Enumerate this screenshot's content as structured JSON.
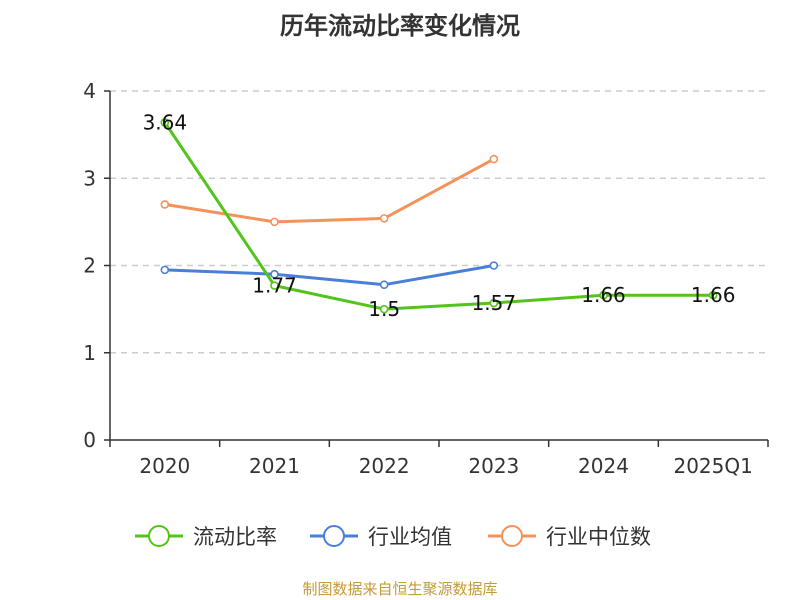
{
  "chart_data": {
    "type": "line",
    "title": "历年流动比率变化情况",
    "categories": [
      "2020",
      "2021",
      "2022",
      "2023",
      "2024",
      "2025Q1"
    ],
    "ylim": [
      0,
      4
    ],
    "yticks": [
      0,
      1,
      2,
      3,
      4
    ],
    "grid": true,
    "legend_position": "bottom",
    "series": [
      {
        "name": "流动比率",
        "color": "#52c41a",
        "values": [
          3.64,
          1.77,
          1.5,
          1.57,
          1.66,
          1.66
        ],
        "labels": [
          "3.64",
          "1.77",
          "1.5",
          "1.57",
          "1.66",
          "1.66"
        ]
      },
      {
        "name": "行业均值",
        "color": "#4a7fd8",
        "values": [
          1.95,
          1.9,
          1.78,
          2.0,
          null,
          null
        ]
      },
      {
        "name": "行业中位数",
        "color": "#f5915a",
        "values": [
          2.7,
          2.5,
          2.54,
          3.22,
          null,
          null
        ]
      }
    ]
  },
  "footer": {
    "source": "制图数据来自恒生聚源数据库"
  }
}
